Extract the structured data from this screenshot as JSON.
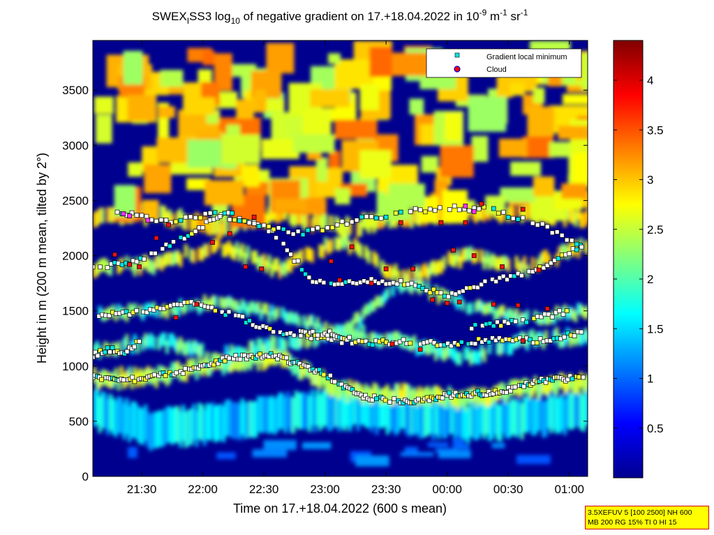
{
  "chart_data": {
    "type": "heatmap",
    "title": {
      "prefix": "SWEX",
      "prefix_sub": "I",
      "mid": "SS3 log",
      "mid_sub": "10",
      "suffix": " of negative gradient on 17.+18.04.2022 in 10",
      "unit_exp1": "-9",
      "unit_mid": " m",
      "unit_exp2": "-1",
      "unit_mid2": " sr",
      "unit_exp3": "-1"
    },
    "xlabel": "Time on 17.+18.04.2022 (600 s mean)",
    "ylabel": "Height in m (200 m mean, tilted by 2°)",
    "x_range_hours": [
      21.1,
      25.15
    ],
    "x_ticks": [
      {
        "label": "21:30",
        "h": 21.5
      },
      {
        "label": "22:00",
        "h": 22.0
      },
      {
        "label": "22:30",
        "h": 22.5
      },
      {
        "label": "23:00",
        "h": 23.0
      },
      {
        "label": "23:30",
        "h": 23.5
      },
      {
        "label": "00:00",
        "h": 24.0
      },
      {
        "label": "00:30",
        "h": 24.5
      },
      {
        "label": "01:00",
        "h": 25.0
      }
    ],
    "ylim": [
      0,
      3950
    ],
    "y_ticks": [
      "0",
      "500",
      "1000",
      "1500",
      "2000",
      "2500",
      "3000",
      "3500"
    ],
    "colorbar": {
      "range": [
        0,
        4.4
      ],
      "ticks": [
        "0.5",
        "1",
        "1.5",
        "2",
        "2.5",
        "3",
        "3.5",
        "4"
      ]
    },
    "legend": {
      "placement": "top-right",
      "entries": [
        {
          "label": "Gradient local minimum",
          "color": "#00e5e5"
        },
        {
          "label": "Cloud",
          "color": "#ff0000"
        }
      ]
    },
    "layers": [
      {
        "h_start": 21.1,
        "h_end": 25.15,
        "height_m": [
          600,
          420,
          500,
          560,
          610,
          560,
          500,
          540,
          600
        ],
        "thickness_m": 330,
        "level": 1.4
      },
      {
        "h_start": 21.1,
        "h_end": 25.15,
        "height_m": [
          880,
          900,
          1020,
          1080,
          780,
          740,
          700,
          800,
          860
        ],
        "thickness_m": 140,
        "level": 2.3
      },
      {
        "h_start": 21.1,
        "h_end": 25.15,
        "height_m": [
          1140,
          1240,
          1080,
          1200,
          1300,
          1220,
          1080,
          1230,
          1280
        ],
        "thickness_m": 120,
        "level": 1.9
      },
      {
        "h_start": 21.1,
        "h_end": 25.15,
        "height_m": [
          1460,
          1500,
          1580,
          1460,
          1300,
          1760,
          1560,
          1430,
          1500
        ],
        "thickness_m": 100,
        "level": 2.0
      },
      {
        "h_start": 21.1,
        "h_end": 25.15,
        "height_m": [
          1880,
          1920,
          2100,
          1870,
          2150,
          1780,
          2000,
          1900,
          2090
        ],
        "thickness_m": 120,
        "level": 2.5
      },
      {
        "h_start": 21.1,
        "h_end": 25.15,
        "height_m": [
          2350,
          2380,
          2250,
          2380,
          2250,
          2350,
          2400,
          2400,
          2350
        ],
        "thickness_m": 140,
        "level": 2.7
      }
    ],
    "minima_tracks": [
      {
        "h_start": 21.1,
        "h_end": 25.15,
        "height_m": [
          900,
          880,
          950,
          1070,
          1100,
          960,
          720,
          680,
          740,
          760,
          870,
          900
        ],
        "step_h": 0.018
      },
      {
        "h_start": 21.15,
        "h_end": 25.1,
        "height_m": [
          1450,
          1500,
          1580,
          1470,
          1310,
          1250,
          1210,
          1220,
          1200,
          1240,
          1230,
          1300
        ],
        "step_h": 0.028
      },
      {
        "h_start": 21.1,
        "h_end": 25.1,
        "height_m": [
          1880,
          1950,
          2150,
          2400,
          2230,
          1750,
          1770,
          1760,
          1630,
          1770,
          1880,
          2080
        ],
        "step_h": 0.03
      },
      {
        "h_start": 21.3,
        "h_end": 25.1,
        "height_m": [
          2400,
          2300,
          2380,
          2280,
          2200,
          2310,
          2380,
          2440,
          2420,
          2300,
          2100
        ],
        "step_h": 0.04
      },
      {
        "h_start": 21.1,
        "h_end": 21.5,
        "height_m": [
          1100,
          1150,
          1120,
          1260
        ],
        "step_h": 0.02
      },
      {
        "h_start": 22.8,
        "h_end": 23.2,
        "height_m": [
          1300,
          1290,
          1300,
          1240
        ],
        "step_h": 0.02
      },
      {
        "h_start": 24.2,
        "h_end": 25.0,
        "height_m": [
          1350,
          1380,
          1400,
          1450,
          1500
        ],
        "step_h": 0.03
      }
    ],
    "cloud_points": [
      {
        "h": 21.28,
        "m": 2010
      },
      {
        "h": 21.4,
        "m": 1920
      },
      {
        "h": 21.48,
        "m": 1900
      },
      {
        "h": 21.62,
        "m": 2160
      },
      {
        "h": 21.72,
        "m": 2280
      },
      {
        "h": 21.78,
        "m": 1440
      },
      {
        "h": 21.95,
        "m": 1560
      },
      {
        "h": 22.08,
        "m": 2120
      },
      {
        "h": 22.22,
        "m": 2200
      },
      {
        "h": 22.35,
        "m": 1900
      },
      {
        "h": 22.42,
        "m": 2350
      },
      {
        "h": 22.48,
        "m": 1880
      },
      {
        "h": 23.05,
        "m": 1950
      },
      {
        "h": 23.12,
        "m": 1780
      },
      {
        "h": 23.22,
        "m": 2080
      },
      {
        "h": 23.38,
        "m": 1750
      },
      {
        "h": 23.5,
        "m": 1880
      },
      {
        "h": 23.55,
        "m": 1200
      },
      {
        "h": 23.62,
        "m": 2300
      },
      {
        "h": 23.72,
        "m": 1880
      },
      {
        "h": 23.78,
        "m": 1150
      },
      {
        "h": 23.88,
        "m": 1600
      },
      {
        "h": 23.95,
        "m": 2300
      },
      {
        "h": 24.0,
        "m": 1570
      },
      {
        "h": 24.05,
        "m": 2050
      },
      {
        "h": 24.1,
        "m": 1580
      },
      {
        "h": 24.15,
        "m": 2300
      },
      {
        "h": 24.22,
        "m": 2000
      },
      {
        "h": 24.28,
        "m": 2470
      },
      {
        "h": 24.38,
        "m": 1560
      },
      {
        "h": 24.45,
        "m": 1900
      },
      {
        "h": 24.58,
        "m": 1550
      },
      {
        "h": 24.62,
        "m": 2420
      },
      {
        "h": 24.75,
        "m": 1870
      },
      {
        "h": 24.82,
        "m": 1520
      },
      {
        "h": 24.62,
        "m": 1230
      }
    ],
    "magenta_points": [
      {
        "h": 21.35,
        "m": 2380
      },
      {
        "h": 21.4,
        "m": 2360
      },
      {
        "h": 21.55,
        "m": 2320
      },
      {
        "h": 24.15,
        "m": 2450
      },
      {
        "h": 24.22,
        "m": 2400
      }
    ]
  },
  "info_box": {
    "line1": "3.5XEFUV 5 [100 2500] NH 600",
    "line2": "MB 200 RG 15% TI 0 HI 15"
  }
}
